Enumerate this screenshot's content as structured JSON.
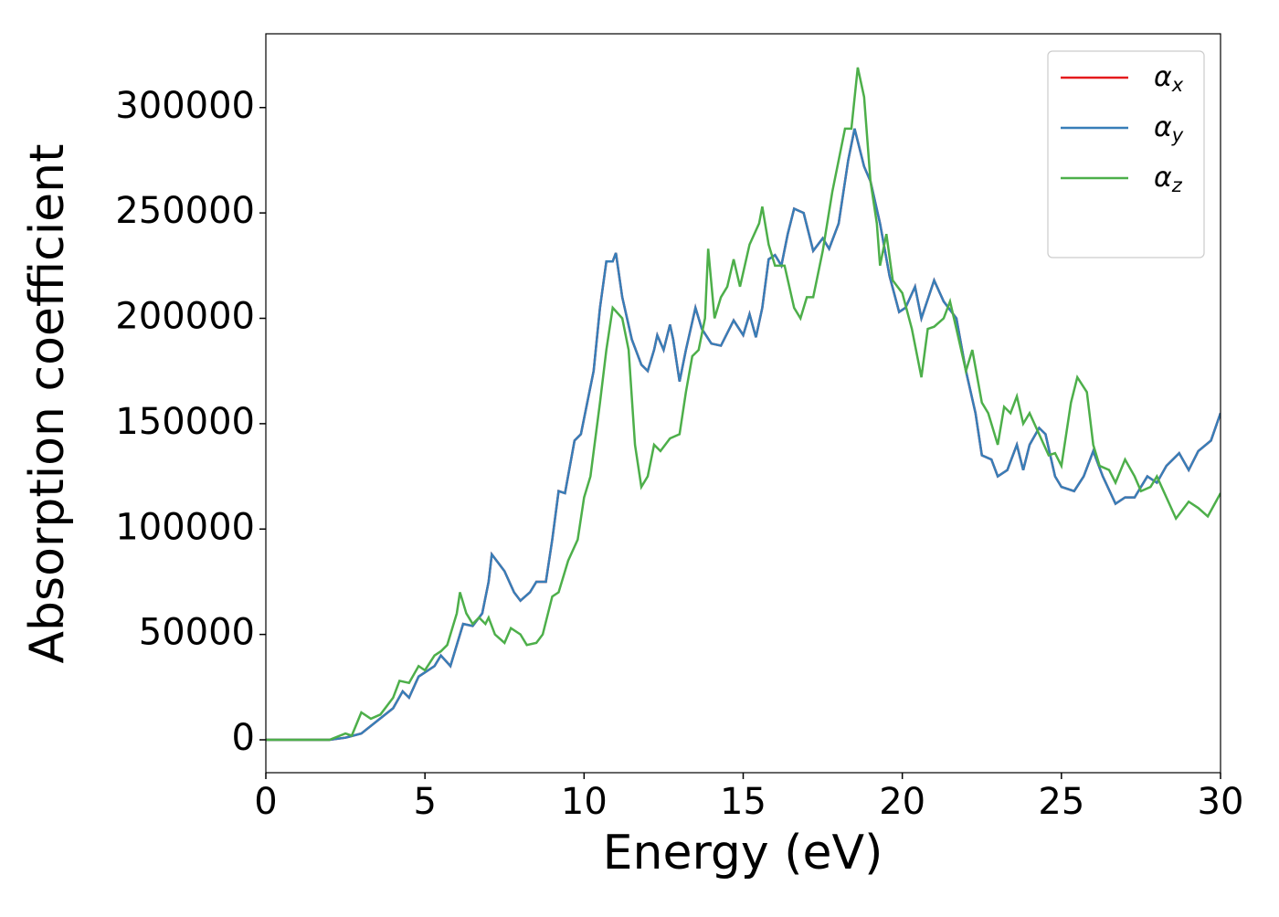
{
  "chart_data": {
    "type": "line",
    "xlabel": "Energy (eV)",
    "ylabel": "Absorption coefficient",
    "xlim": [
      0,
      30
    ],
    "xticks": [
      0,
      5,
      10,
      15,
      20,
      25,
      30
    ],
    "ylim": [
      -15600,
      335000
    ],
    "yticks": [
      0,
      50000,
      100000,
      150000,
      200000,
      250000,
      300000
    ],
    "legend": "upper right",
    "series": [
      {
        "name": "αx",
        "color": "#e41a1c",
        "x": [
          0,
          1,
          2,
          2.5,
          3,
          3.5,
          4,
          4.3,
          4.5,
          4.8,
          5,
          5.3,
          5.5,
          5.8,
          6,
          6.2,
          6.5,
          6.8,
          7,
          7.1,
          7.3,
          7.5,
          7.8,
          8,
          8.3,
          8.5,
          8.8,
          9,
          9.2,
          9.4,
          9.7,
          9.9,
          10.1,
          10.3,
          10.5,
          10.7,
          10.9,
          11,
          11.2,
          11.5,
          11.8,
          12,
          12.2,
          12.3,
          12.5,
          12.7,
          12.8,
          13,
          13.2,
          13.5,
          13.7,
          14,
          14.3,
          14.7,
          15,
          15.2,
          15.4,
          15.6,
          15.8,
          16,
          16.2,
          16.4,
          16.6,
          16.9,
          17.2,
          17.5,
          17.7,
          18,
          18.3,
          18.5,
          18.8,
          19,
          19.3,
          19.6,
          19.9,
          20.1,
          20.4,
          20.6,
          21,
          21.3,
          21.7,
          22,
          22.3,
          22.5,
          22.8,
          23,
          23.3,
          23.6,
          23.8,
          24,
          24.3,
          24.5,
          24.8,
          25,
          25.4,
          25.7,
          26,
          26.3,
          26.7,
          27,
          27.3,
          27.7,
          28,
          28.3,
          28.7,
          29,
          29.3,
          29.7,
          30
        ],
        "values": [
          0,
          0,
          0,
          1000,
          3000,
          9000,
          15000,
          23000,
          20000,
          30000,
          32000,
          35000,
          40000,
          35000,
          45000,
          55000,
          54000,
          60000,
          75000,
          88000,
          84000,
          80000,
          70000,
          66000,
          70000,
          75000,
          75000,
          95000,
          118000,
          117000,
          142000,
          145000,
          160000,
          175000,
          205000,
          227000,
          227000,
          231000,
          210000,
          190000,
          178000,
          175000,
          185000,
          192000,
          185000,
          197000,
          190000,
          170000,
          185000,
          205000,
          195000,
          188000,
          187000,
          199000,
          192000,
          202000,
          191000,
          205000,
          228000,
          230000,
          225000,
          240000,
          252000,
          250000,
          232000,
          238000,
          233000,
          245000,
          275000,
          290000,
          272000,
          265000,
          245000,
          220000,
          203000,
          205000,
          215000,
          200000,
          218000,
          208000,
          200000,
          175000,
          155000,
          135000,
          133000,
          125000,
          128000,
          140000,
          128000,
          140000,
          148000,
          145000,
          125000,
          120000,
          118000,
          125000,
          137000,
          125000,
          112000,
          115000,
          115000,
          125000,
          122000,
          130000,
          136000,
          128000,
          137000,
          142000,
          155000
        ]
      },
      {
        "name": "αy",
        "color": "#377eb8",
        "x": [
          0,
          1,
          2,
          2.5,
          3,
          3.5,
          4,
          4.3,
          4.5,
          4.8,
          5,
          5.3,
          5.5,
          5.8,
          6,
          6.2,
          6.5,
          6.8,
          7,
          7.1,
          7.3,
          7.5,
          7.8,
          8,
          8.3,
          8.5,
          8.8,
          9,
          9.2,
          9.4,
          9.7,
          9.9,
          10.1,
          10.3,
          10.5,
          10.7,
          10.9,
          11,
          11.2,
          11.5,
          11.8,
          12,
          12.2,
          12.3,
          12.5,
          12.7,
          12.8,
          13,
          13.2,
          13.5,
          13.7,
          14,
          14.3,
          14.7,
          15,
          15.2,
          15.4,
          15.6,
          15.8,
          16,
          16.2,
          16.4,
          16.6,
          16.9,
          17.2,
          17.5,
          17.7,
          18,
          18.3,
          18.5,
          18.8,
          19,
          19.3,
          19.6,
          19.9,
          20.1,
          20.4,
          20.6,
          21,
          21.3,
          21.7,
          22,
          22.3,
          22.5,
          22.8,
          23,
          23.3,
          23.6,
          23.8,
          24,
          24.3,
          24.5,
          24.8,
          25,
          25.4,
          25.7,
          26,
          26.3,
          26.7,
          27,
          27.3,
          27.7,
          28,
          28.3,
          28.7,
          29,
          29.3,
          29.7,
          30
        ],
        "values": [
          0,
          0,
          0,
          1000,
          3000,
          9000,
          15000,
          23000,
          20000,
          30000,
          32000,
          35000,
          40000,
          35000,
          45000,
          55000,
          54000,
          60000,
          75000,
          88000,
          84000,
          80000,
          70000,
          66000,
          70000,
          75000,
          75000,
          95000,
          118000,
          117000,
          142000,
          145000,
          160000,
          175000,
          205000,
          227000,
          227000,
          231000,
          210000,
          190000,
          178000,
          175000,
          185000,
          192000,
          185000,
          197000,
          190000,
          170000,
          185000,
          205000,
          195000,
          188000,
          187000,
          199000,
          192000,
          202000,
          191000,
          205000,
          228000,
          230000,
          225000,
          240000,
          252000,
          250000,
          232000,
          238000,
          233000,
          245000,
          275000,
          290000,
          272000,
          265000,
          245000,
          220000,
          203000,
          205000,
          215000,
          200000,
          218000,
          208000,
          200000,
          175000,
          155000,
          135000,
          133000,
          125000,
          128000,
          140000,
          128000,
          140000,
          148000,
          145000,
          125000,
          120000,
          118000,
          125000,
          137000,
          125000,
          112000,
          115000,
          115000,
          125000,
          122000,
          130000,
          136000,
          128000,
          137000,
          142000,
          155000
        ]
      },
      {
        "name": "αz",
        "color": "#4daf4a",
        "x": [
          0,
          2,
          2.5,
          2.7,
          3,
          3.3,
          3.6,
          4,
          4.2,
          4.5,
          4.8,
          5,
          5.3,
          5.5,
          5.7,
          6,
          6.1,
          6.3,
          6.5,
          6.7,
          6.9,
          7,
          7.2,
          7.5,
          7.7,
          8,
          8.2,
          8.5,
          8.7,
          9,
          9.2,
          9.5,
          9.8,
          10,
          10.2,
          10.5,
          10.7,
          10.9,
          11.2,
          11.4,
          11.6,
          11.8,
          12,
          12.2,
          12.4,
          12.7,
          13,
          13.2,
          13.4,
          13.6,
          13.8,
          13.9,
          14.1,
          14.3,
          14.5,
          14.7,
          14.9,
          15.2,
          15.5,
          15.6,
          15.8,
          16,
          16.3,
          16.6,
          16.8,
          17,
          17.2,
          17.5,
          17.8,
          18,
          18.2,
          18.4,
          18.6,
          18.8,
          19,
          19.2,
          19.3,
          19.5,
          19.7,
          20,
          20.3,
          20.6,
          20.8,
          21,
          21.3,
          21.5,
          21.7,
          22,
          22.2,
          22.5,
          22.7,
          23,
          23.2,
          23.4,
          23.6,
          23.8,
          24,
          24.3,
          24.6,
          24.8,
          25,
          25.3,
          25.5,
          25.8,
          26,
          26.2,
          26.5,
          26.7,
          27,
          27.3,
          27.5,
          27.8,
          28,
          28.3,
          28.6,
          29,
          29.3,
          29.6,
          30
        ],
        "values": [
          0,
          0,
          3000,
          2000,
          13000,
          10000,
          12000,
          20000,
          28000,
          27000,
          35000,
          33000,
          40000,
          42000,
          45000,
          60000,
          70000,
          60000,
          55000,
          58000,
          55000,
          58000,
          50000,
          46000,
          53000,
          50000,
          45000,
          46000,
          50000,
          68000,
          70000,
          85000,
          95000,
          115000,
          125000,
          160000,
          185000,
          205000,
          200000,
          185000,
          140000,
          120000,
          125000,
          140000,
          137000,
          143000,
          145000,
          165000,
          182000,
          185000,
          200000,
          233000,
          200000,
          210000,
          215000,
          228000,
          215000,
          235000,
          245000,
          253000,
          235000,
          225000,
          225000,
          205000,
          200000,
          210000,
          210000,
          232000,
          260000,
          275000,
          290000,
          290000,
          319000,
          305000,
          265000,
          245000,
          225000,
          240000,
          218000,
          212000,
          195000,
          172000,
          195000,
          196000,
          200000,
          208000,
          195000,
          175000,
          185000,
          160000,
          155000,
          140000,
          158000,
          155000,
          163000,
          150000,
          155000,
          145000,
          135000,
          136000,
          130000,
          160000,
          172000,
          165000,
          140000,
          130000,
          128000,
          122000,
          133000,
          125000,
          118000,
          120000,
          125000,
          115000,
          105000,
          113000,
          110000,
          106000,
          117000
        ]
      }
    ]
  }
}
